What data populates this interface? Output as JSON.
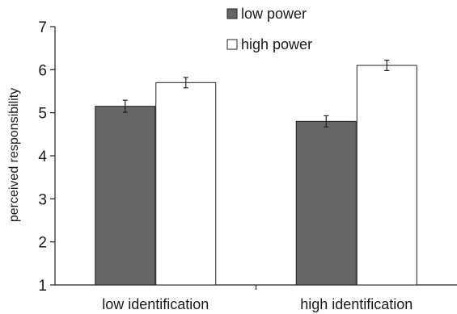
{
  "chart_data": {
    "type": "bar",
    "categories": [
      "low identification",
      "high identification"
    ],
    "series": [
      {
        "name": "low power",
        "values": [
          5.15,
          4.8
        ],
        "errors": [
          0.14,
          0.13
        ],
        "color": "#666666"
      },
      {
        "name": "high power",
        "values": [
          5.7,
          6.1
        ],
        "errors": [
          0.12,
          0.12
        ],
        "color": "#ffffff"
      }
    ],
    "title": "",
    "xlabel": "",
    "ylabel": "perceived responsibility",
    "ylim": [
      1,
      7
    ],
    "yticks": [
      "1",
      "2",
      "3",
      "4",
      "5",
      "6",
      "7"
    ],
    "grid": false,
    "legend_position": "top-right"
  }
}
